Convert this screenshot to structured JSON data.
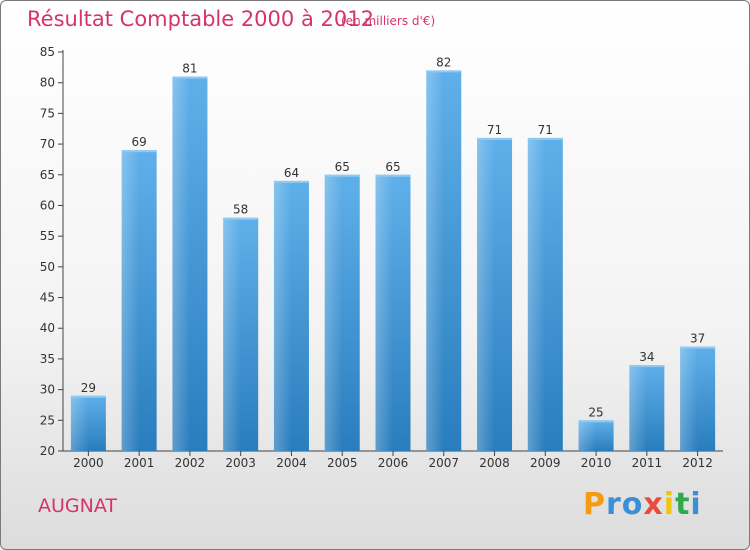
{
  "chart_data": {
    "type": "bar",
    "title": "Résultat Comptable 2000 à 2012",
    "subtitle": "(en milliers d'€)",
    "categories": [
      "2000",
      "2001",
      "2002",
      "2003",
      "2004",
      "2005",
      "2006",
      "2007",
      "2008",
      "2009",
      "2010",
      "2011",
      "2012"
    ],
    "values": [
      29,
      69,
      81,
      58,
      64,
      65,
      65,
      82,
      71,
      71,
      25,
      34,
      37
    ],
    "ylim": [
      20,
      85
    ],
    "yticks": [
      20,
      25,
      30,
      35,
      40,
      45,
      50,
      55,
      60,
      65,
      70,
      75,
      80,
      85
    ],
    "xlabel": "",
    "ylabel": "",
    "grid": false,
    "legend": "none"
  },
  "city": "AUGNAT",
  "logo": {
    "text": "Proxiti",
    "letters": [
      {
        "ch": "P",
        "color": "#f39c12"
      },
      {
        "ch": "r",
        "color": "#3b8fd6"
      },
      {
        "ch": "o",
        "color": "#3b8fd6"
      },
      {
        "ch": "x",
        "color": "#e74c3c"
      },
      {
        "ch": "i",
        "color": "#f1c40f"
      },
      {
        "ch": "t",
        "color": "#2eaa4a"
      },
      {
        "ch": "i",
        "color": "#3b8fd6"
      }
    ]
  },
  "colors": {
    "accent": "#d6336c",
    "bar_top": "#5fb0ea",
    "bar_bottom": "#2a7dbd",
    "axis": "#444444"
  }
}
